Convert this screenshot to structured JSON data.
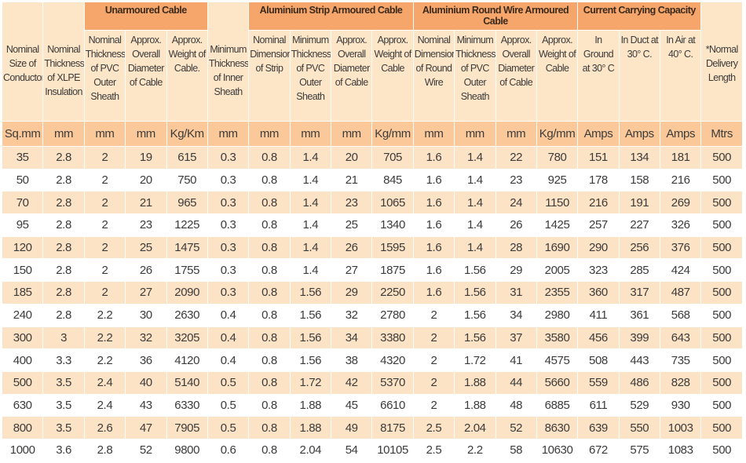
{
  "table": {
    "header": [
      "Nominal Size of Conductor",
      "Nominal Thickness of XLPE Insulation",
      {
        "group": "Unarmoured Cable",
        "columns": [
          "Nominal Thickness of PVC Outer Sheath",
          "Approx. Overall Diameter of Cable",
          "Approx. Weight of Cable."
        ]
      },
      "Minimum Thickness of Inner Sheath",
      {
        "group": "Aluminium Strip Armoured Cable",
        "columns": [
          "Nominal Dimension of Strip",
          "Minimum Thickness of PVC Outer Sheath",
          "Approx. Overall Diameter of Cable",
          "Approx. Weight of Cable"
        ]
      },
      {
        "group": "Aluminium Round Wire Armoured Cable",
        "columns": [
          "Nominal Dimension of Round Wire",
          "Minimum Thickness of PVC Outer Sheath",
          "Approx. Overall Diameter of Cable",
          "Approx. Weight of Cable"
        ]
      },
      {
        "group": "Current Carrying Capacity",
        "columns": [
          "In Ground at 30° C",
          "In Duct at 30° C.",
          "In Air at 40° C."
        ]
      },
      "*Normal Delivery Length"
    ],
    "units": [
      "Sq.mm",
      "mm",
      "mm",
      "mm",
      "Kg/Km",
      "mm",
      "mm",
      "mm",
      "mm",
      "Kg/mm",
      "mm",
      "mm",
      "mm",
      "Kg/mm",
      "Amps",
      "Amps",
      "Amps",
      "Mtrs"
    ],
    "rows": [
      [
        "35",
        "2.8",
        "2",
        "19",
        "615",
        "0.3",
        "0.8",
        "1.4",
        "20",
        "705",
        "1.6",
        "1.4",
        "22",
        "780",
        "151",
        "134",
        "181",
        "500"
      ],
      [
        "50",
        "2.8",
        "2",
        "20",
        "750",
        "0.3",
        "0.8",
        "1.4",
        "21",
        "845",
        "1.6",
        "1.4",
        "23",
        "925",
        "178",
        "158",
        "216",
        "500"
      ],
      [
        "70",
        "2.8",
        "2",
        "21",
        "965",
        "0.3",
        "0.8",
        "1.4",
        "23",
        "1065",
        "1.6",
        "1.4",
        "24",
        "1150",
        "216",
        "191",
        "269",
        "500"
      ],
      [
        "95",
        "2.8",
        "2",
        "23",
        "1225",
        "0.3",
        "0.8",
        "1.4",
        "25",
        "1340",
        "1.6",
        "1.4",
        "26",
        "1425",
        "257",
        "227",
        "326",
        "500"
      ],
      [
        "120",
        "2.8",
        "2",
        "25",
        "1475",
        "0.3",
        "0.8",
        "1.4",
        "26",
        "1595",
        "1.6",
        "1.4",
        "28",
        "1690",
        "290",
        "256",
        "376",
        "500"
      ],
      [
        "150",
        "2.8",
        "2",
        "26",
        "1755",
        "0.3",
        "0.8",
        "1.4",
        "27",
        "1875",
        "1.6",
        "1.56",
        "29",
        "2005",
        "323",
        "285",
        "424",
        "500"
      ],
      [
        "185",
        "2.8",
        "2",
        "27",
        "2090",
        "0.3",
        "0.8",
        "1.56",
        "29",
        "2250",
        "1.6",
        "1.56",
        "31",
        "2355",
        "360",
        "317",
        "487",
        "500"
      ],
      [
        "240",
        "2.8",
        "2.2",
        "30",
        "2630",
        "0.4",
        "0.8",
        "1.56",
        "32",
        "2780",
        "2",
        "1.56",
        "34",
        "2980",
        "411",
        "361",
        "568",
        "500"
      ],
      [
        "300",
        "3",
        "2.2",
        "32",
        "3205",
        "0.4",
        "0.8",
        "1.56",
        "34",
        "3380",
        "2",
        "1.56",
        "37",
        "3580",
        "456",
        "399",
        "643",
        "500"
      ],
      [
        "400",
        "3.3",
        "2.2",
        "36",
        "4120",
        "0.4",
        "0.8",
        "1.56",
        "38",
        "4320",
        "2",
        "1.72",
        "41",
        "4575",
        "508",
        "443",
        "735",
        "500"
      ],
      [
        "500",
        "3.5",
        "2.4",
        "40",
        "5140",
        "0.5",
        "0.8",
        "1.72",
        "42",
        "5370",
        "2",
        "1.88",
        "44",
        "5660",
        "559",
        "486",
        "828",
        "500"
      ],
      [
        "630",
        "3.5",
        "2.4",
        "43",
        "6330",
        "0.5",
        "0.8",
        "1.88",
        "45",
        "6610",
        "2",
        "1.88",
        "48",
        "6885",
        "611",
        "529",
        "930",
        "500"
      ],
      [
        "800",
        "3.5",
        "2.6",
        "47",
        "7905",
        "0.5",
        "0.8",
        "1.88",
        "49",
        "8175",
        "2.5",
        "2.04",
        "52",
        "8630",
        "639",
        "550",
        "1003",
        "500"
      ],
      [
        "1000",
        "3.6",
        "2.8",
        "52",
        "9800",
        "0.6",
        "0.8",
        "2.04",
        "54",
        "10105",
        "2.5",
        "2.2",
        "58",
        "10630",
        "672",
        "575",
        "1083",
        "500"
      ]
    ]
  }
}
